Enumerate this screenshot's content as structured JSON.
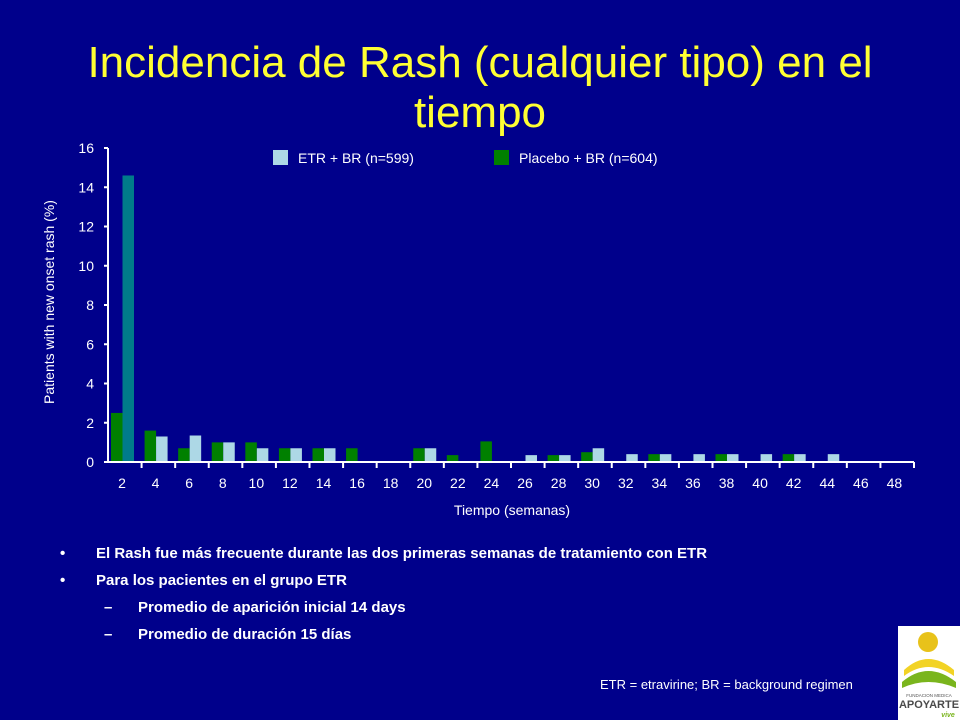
{
  "slide": {
    "title": "Incidencia de Rash (cualquier tipo) en el tiempo",
    "bullets": [
      {
        "marker": "•",
        "text": "El Rash fue más frecuente durante las dos primeras semanas de tratamiento con ETR"
      },
      {
        "marker": "•",
        "text": "Para los pacientes en el grupo ETR"
      },
      {
        "marker": "–",
        "text": "Promedio de aparición inicial 14 days"
      },
      {
        "marker": "–",
        "text": "Promedio de duración 15 días"
      }
    ],
    "footnote": "ETR = etravirine; BR = background regimen",
    "logo": {
      "line1": "FUNDACION MEDICA",
      "line2": "APOYARTE",
      "line3": "vive"
    }
  },
  "colors": {
    "background": "#00008b",
    "title": "#ffff33",
    "etr": "#add8e6",
    "placebo": "#008000",
    "etr_highlight": "#007b8a",
    "axis": "#ffffff"
  },
  "chart_data": {
    "type": "bar",
    "title": "",
    "xlabel": "Tiempo (semanas)",
    "ylabel": "Patients with new onset rash (%)",
    "ylim": [
      0,
      16
    ],
    "yticks": [
      0,
      2,
      4,
      6,
      8,
      10,
      12,
      14,
      16
    ],
    "grid": false,
    "legend_position": "top",
    "categories": [
      "2",
      "4",
      "6",
      "8",
      "10",
      "12",
      "14",
      "16",
      "18",
      "20",
      "22",
      "24",
      "26",
      "28",
      "30",
      "32",
      "34",
      "36",
      "38",
      "40",
      "42",
      "44",
      "46",
      "48"
    ],
    "series": [
      {
        "name": "Placebo + BR (n=604)",
        "color": "#008000",
        "values": [
          2.5,
          1.6,
          0.7,
          1.0,
          1.0,
          0.7,
          0.7,
          0.7,
          0,
          0.7,
          0.35,
          1.05,
          0,
          0.35,
          0.5,
          0,
          0.4,
          0,
          0.4,
          0,
          0.4,
          0,
          0,
          0
        ]
      },
      {
        "name": "ETR + BR (n=599)",
        "color": "#add8e6",
        "values": [
          14.6,
          1.3,
          1.35,
          1.0,
          0.7,
          0.7,
          0.7,
          0,
          0,
          0.7,
          0,
          0,
          0.35,
          0.35,
          0.7,
          0.4,
          0.4,
          0.4,
          0.4,
          0.4,
          0.4,
          0.4,
          0,
          0
        ]
      }
    ]
  }
}
